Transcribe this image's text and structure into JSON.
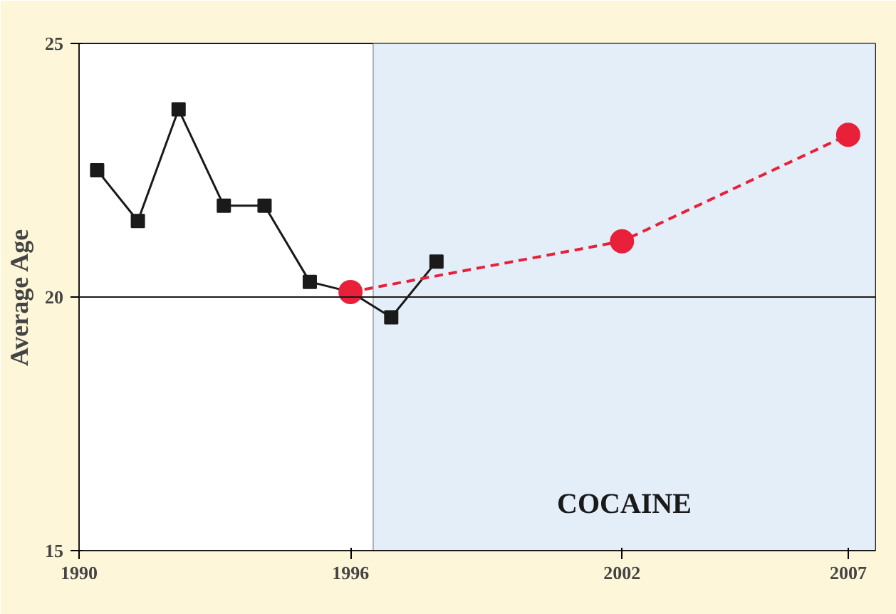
{
  "chart_data": {
    "type": "line",
    "ylabel": "Average Age",
    "xlim": [
      1990,
      2007.6
    ],
    "ylim": [
      15,
      25
    ],
    "xticks": [
      1990,
      1996,
      2002,
      2007
    ],
    "yticks": [
      15,
      20,
      25
    ],
    "grid": false,
    "series": [
      {
        "color": "#1a1a1a",
        "marker": "square",
        "line_style": "solid",
        "x": [
          1990.4,
          1991.3,
          1992.2,
          1993.2,
          1994.1,
          1995.1,
          1996,
          1996.9,
          1997.9
        ],
        "values": [
          22.5,
          21.5,
          23.7,
          21.8,
          21.8,
          20.3,
          20.1,
          19.6,
          20.7
        ]
      },
      {
        "color": "#e8203a",
        "marker": "circle",
        "line_style": "dashed",
        "x": [
          1996,
          2002,
          2007
        ],
        "values": [
          20.1,
          21.1,
          23.2
        ]
      }
    ],
    "ref_lines": [
      {
        "axis": "y",
        "value": 20,
        "color": "#1a1a1a",
        "line_style": "solid"
      }
    ],
    "bands": [
      {
        "axis": "x",
        "from": 1996.5,
        "to": 2007.6,
        "label": "COCAINE",
        "color": "#e4eef8"
      }
    ]
  }
}
